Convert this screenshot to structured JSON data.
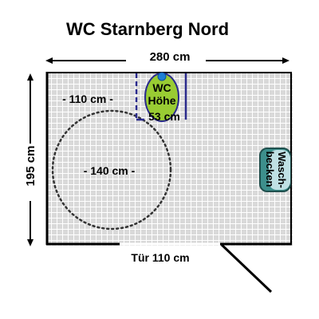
{
  "title": "WC Starnberg Nord",
  "dimensions": {
    "width_label": "280 cm",
    "height_label": "195 cm",
    "wc_distance_label": "- 110 cm -",
    "turning_circle_label": "- 140 cm -",
    "door_label": "Tür 110 cm"
  },
  "fixtures": {
    "wc": {
      "line1": "WC",
      "line2": "Höhe",
      "line3": "53 cm"
    },
    "sink": {
      "line1": "Wasch-",
      "line2": "becken"
    }
  },
  "colors": {
    "tile": "#d9d9d9",
    "grout": "#ffffff",
    "wall": "#000000",
    "wc_fill": "#99cc33",
    "wc_flush": "#1e7fd6",
    "wc_frame": "#2a2a8c",
    "sink_fill": "#3d8f8c",
    "sink_inner": "#bfe0e4",
    "circle": "#333333"
  }
}
